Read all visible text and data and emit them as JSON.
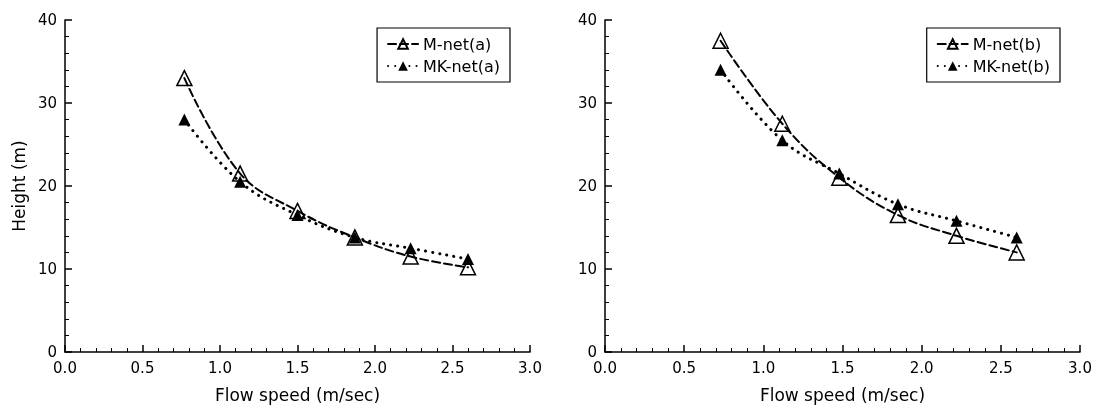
{
  "chart_data": [
    {
      "type": "line",
      "xlabel": "Flow speed (m/sec)",
      "ylabel": "Height (m)",
      "x": [
        0.77,
        1.13,
        1.5,
        1.87,
        2.23,
        2.6
      ],
      "series": [
        {
          "name": "M-net(a)",
          "color": "#000000",
          "line_style": "dashed",
          "values": [
            33,
            21.5,
            17,
            13.8,
            11.5,
            10.2
          ]
        },
        {
          "name": "MK-net(a)",
          "color": "#000000",
          "line_style": "dotted",
          "values": [
            28,
            20.5,
            16.5,
            13.8,
            12.5,
            11.2
          ]
        }
      ],
      "xlim": [
        0,
        3
      ],
      "xticks": [
        {
          "value": 0,
          "label": "0.0"
        },
        0.5,
        {
          "value": 1,
          "label": "1.0"
        },
        1.5,
        {
          "value": 2,
          "label": "2.0"
        },
        2.5,
        {
          "value": 3,
          "label": "3.0"
        }
      ],
      "ylim": [
        0,
        40
      ],
      "yticks": [
        0,
        10,
        20,
        30,
        40
      ],
      "marker": "triangle",
      "grid": false,
      "legend": "top right"
    },
    {
      "type": "line",
      "xlabel": "Flow speed (m/sec)",
      "x": [
        0.73,
        1.12,
        1.48,
        1.85,
        2.22,
        2.6
      ],
      "series": [
        {
          "name": "M-net(b)",
          "color": "#000000",
          "line_style": "dashed",
          "values": [
            37.5,
            27.5,
            21,
            16.5,
            14,
            12
          ]
        },
        {
          "name": "MK-net(b)",
          "color": "#000000",
          "line_style": "dotted",
          "values": [
            34,
            25.5,
            21.5,
            17.8,
            15.8,
            13.8
          ]
        }
      ],
      "xlim": [
        0,
        3
      ],
      "xticks": [
        {
          "value": 0,
          "label": "0.0"
        },
        0.5,
        {
          "value": 1,
          "label": "1.0"
        },
        1.5,
        {
          "value": 2,
          "label": "2.0"
        },
        2.5,
        {
          "value": 3,
          "label": "3.0"
        }
      ],
      "ylim": [
        0,
        40
      ],
      "yticks": [
        0,
        10,
        20,
        30,
        40
      ],
      "marker": "triangle",
      "grid": false,
      "legend": "top right"
    }
  ]
}
